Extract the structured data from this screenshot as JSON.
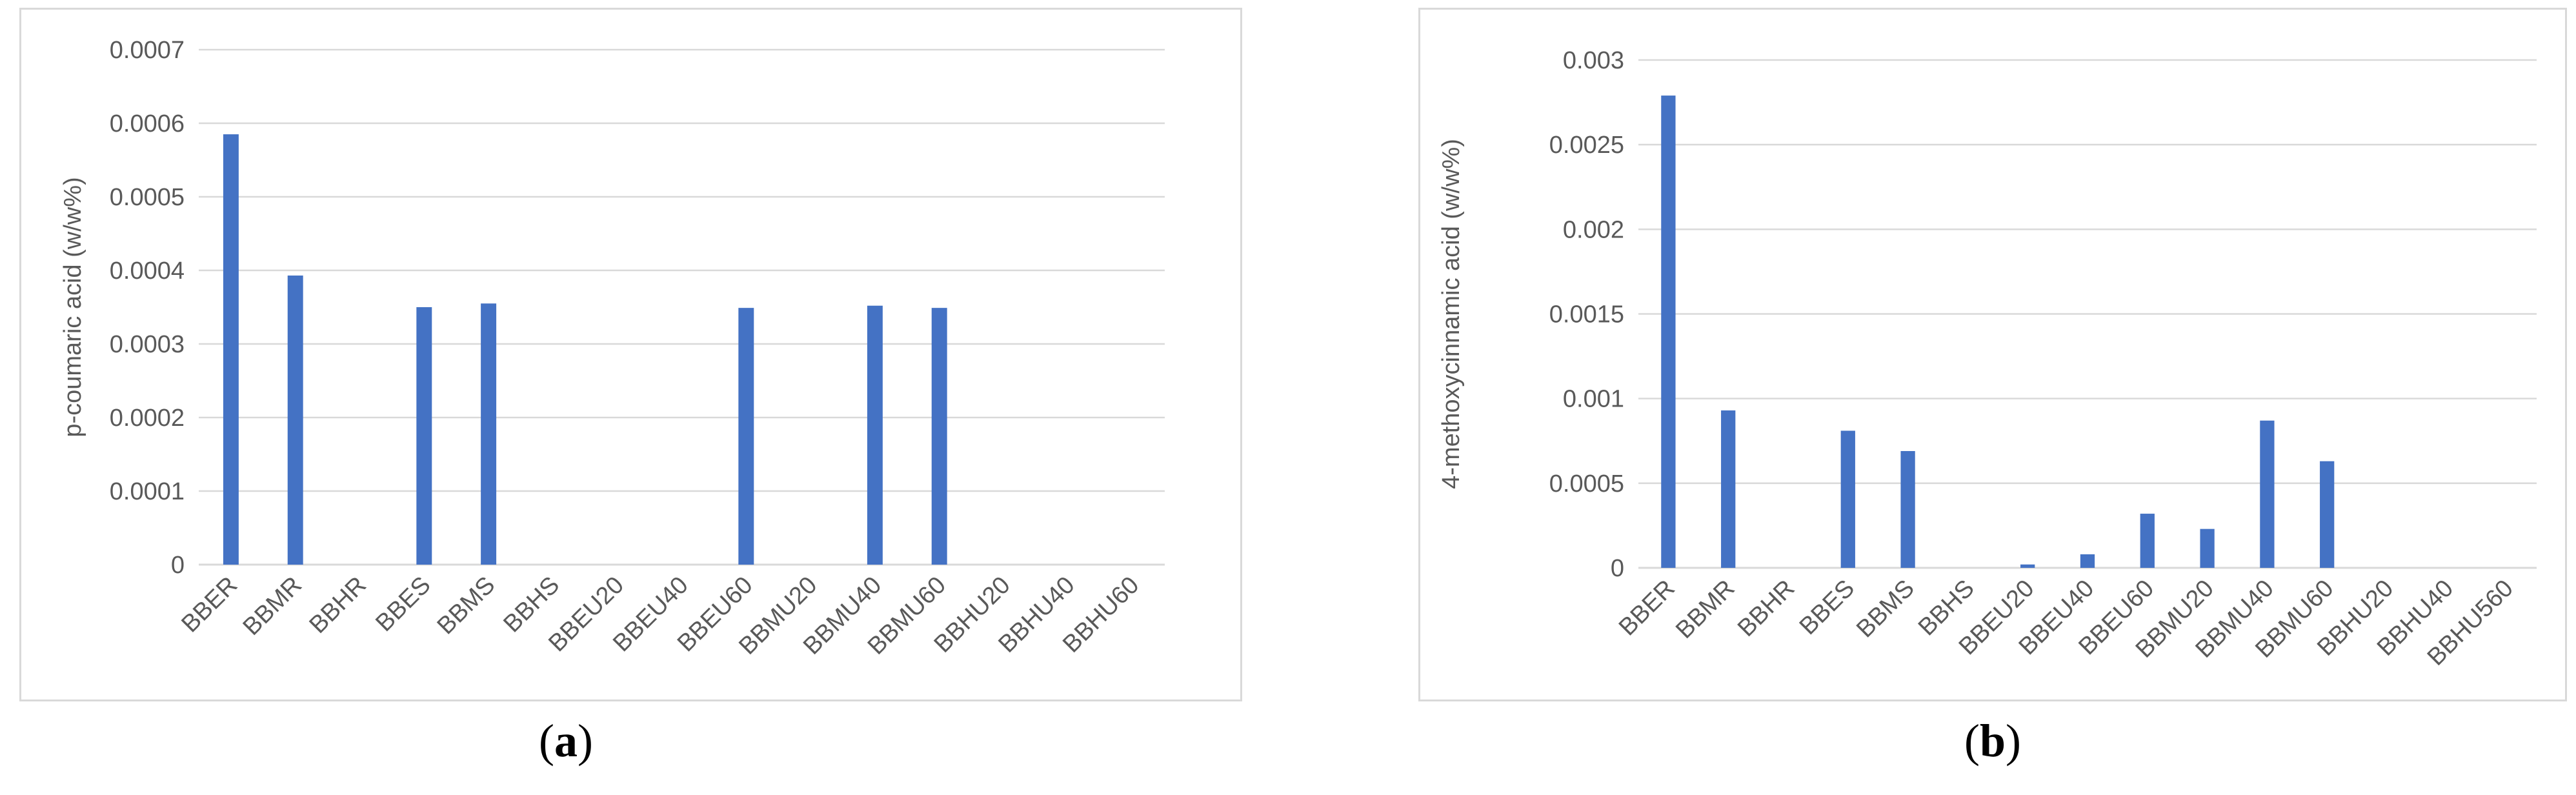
{
  "chart_data": [
    {
      "type": "bar",
      "panel": "a",
      "ylabel": "p-coumaric acid (w/w%)",
      "ylim": [
        0,
        0.0007
      ],
      "yticks": [
        "0",
        "0.0001",
        "0.0002",
        "0.0003",
        "0.0004",
        "0.0005",
        "0.0006",
        "0.0007"
      ],
      "grid": true,
      "bar_color": "#4472c4",
      "categories": [
        "BBER",
        "BBMR",
        "BBHR",
        "BBES",
        "BBMS",
        "BBHS",
        "BBEU20",
        "BBEU40",
        "BBEU60",
        "BBMU20",
        "BBMU40",
        "BBMU60",
        "BBHU20",
        "BBHU40",
        "BBHU60"
      ],
      "values": [
        0.000585,
        0.000393,
        0,
        0.00035,
        0.000355,
        0,
        0,
        0,
        0.000349,
        0,
        0.000352,
        0.000349,
        0,
        0,
        0
      ]
    },
    {
      "type": "bar",
      "panel": "b",
      "ylabel": "4-methoxycinnamic acid (w/w%)",
      "ylim": [
        0,
        0.003
      ],
      "yticks": [
        "0",
        "0.0005",
        "0.001",
        "0.0015",
        "0.002",
        "0.0025",
        "0.003"
      ],
      "grid": true,
      "bar_color": "#4472c4",
      "categories": [
        "BBER",
        "BBMR",
        "BBHR",
        "BBES",
        "BBMS",
        "BBHS",
        "BBEU20",
        "BBEU40",
        "BBEU60",
        "BBMU20",
        "BBMU40",
        "BBMU60",
        "BBHU20",
        "BBHU40",
        "BBHU560"
      ],
      "values": [
        0.00279,
        0.00093,
        0,
        0.00081,
        0.00069,
        0,
        2e-05,
        8e-05,
        0.00032,
        0.00023,
        0.00087,
        0.00063,
        0,
        0,
        0
      ]
    }
  ],
  "panel_labels": [
    {
      "open": "(",
      "letter": "a",
      "close": ")"
    },
    {
      "open": "(",
      "letter": "b",
      "close": ")"
    }
  ]
}
